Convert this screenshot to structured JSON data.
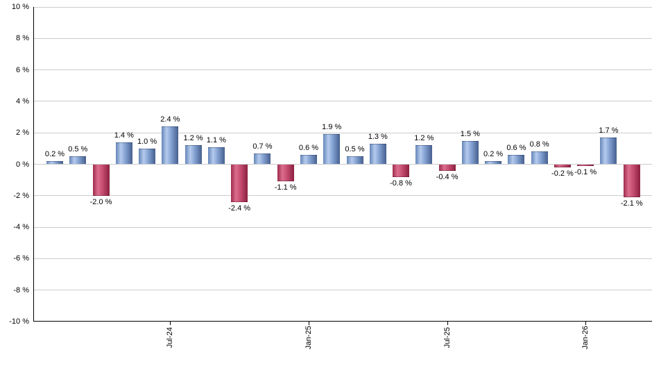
{
  "chart_data": {
    "type": "bar",
    "title": "",
    "xlabel": "",
    "ylabel": "",
    "ylim": [
      -10,
      10
    ],
    "y_tick_step": 2,
    "grid": true,
    "legend": "none",
    "y_tick_labels": [
      "10 %",
      "8 %",
      "6 %",
      "4 %",
      "2 %",
      "0 %",
      "-2 %",
      "-4 %",
      "-6 %",
      "-8 %",
      "-10 %"
    ],
    "bars": [
      {
        "value": 0.2,
        "label": "0.2 %"
      },
      {
        "value": 0.5,
        "label": "0.5 %"
      },
      {
        "value": -2.0,
        "label": "-2.0 %"
      },
      {
        "value": 1.4,
        "label": "1.4 %"
      },
      {
        "value": 1.0,
        "label": "1.0 %"
      },
      {
        "value": 2.4,
        "label": "2.4 %"
      },
      {
        "value": 1.2,
        "label": "1.2 %"
      },
      {
        "value": 1.1,
        "label": "1.1 %"
      },
      {
        "value": -2.4,
        "label": "-2.4 %"
      },
      {
        "value": 0.7,
        "label": "0.7 %"
      },
      {
        "value": -1.1,
        "label": "-1.1 %"
      },
      {
        "value": 0.6,
        "label": "0.6 %"
      },
      {
        "value": 1.9,
        "label": "1.9 %"
      },
      {
        "value": 0.5,
        "label": "0.5 %"
      },
      {
        "value": 1.3,
        "label": "1.3 %"
      },
      {
        "value": -0.8,
        "label": "-0.8 %"
      },
      {
        "value": 1.2,
        "label": "1.2 %"
      },
      {
        "value": -0.4,
        "label": "-0.4 %"
      },
      {
        "value": 1.5,
        "label": "1.5 %"
      },
      {
        "value": 0.2,
        "label": "0.2 %"
      },
      {
        "value": 0.6,
        "label": "0.6 %"
      },
      {
        "value": 0.8,
        "label": "0.8 %"
      },
      {
        "value": -0.2,
        "label": "-0.2 %"
      },
      {
        "value": -0.1,
        "label": "-0.1 %"
      },
      {
        "value": 1.7,
        "label": "1.7 %"
      },
      {
        "value": -2.1,
        "label": "-2.1 %"
      }
    ],
    "x_ticks": [
      {
        "label": "Jul-24",
        "bar_index": 5
      },
      {
        "label": "Jan-25",
        "bar_index": 11
      },
      {
        "label": "Jul-25",
        "bar_index": 17
      },
      {
        "label": "Jan-26",
        "bar_index": 23
      }
    ],
    "colors": {
      "positive_bar_gradient": [
        "#6586b8",
        "#b5cbee",
        "#7f9dce",
        "#46608f"
      ],
      "negative_bar_gradient": [
        "#9e2c4d",
        "#dc6d8d",
        "#c24a6e",
        "#8c1f40"
      ],
      "gridline": "#cccccc",
      "axis": "#000000",
      "label_text": "#000000",
      "background": "#ffffff"
    }
  }
}
